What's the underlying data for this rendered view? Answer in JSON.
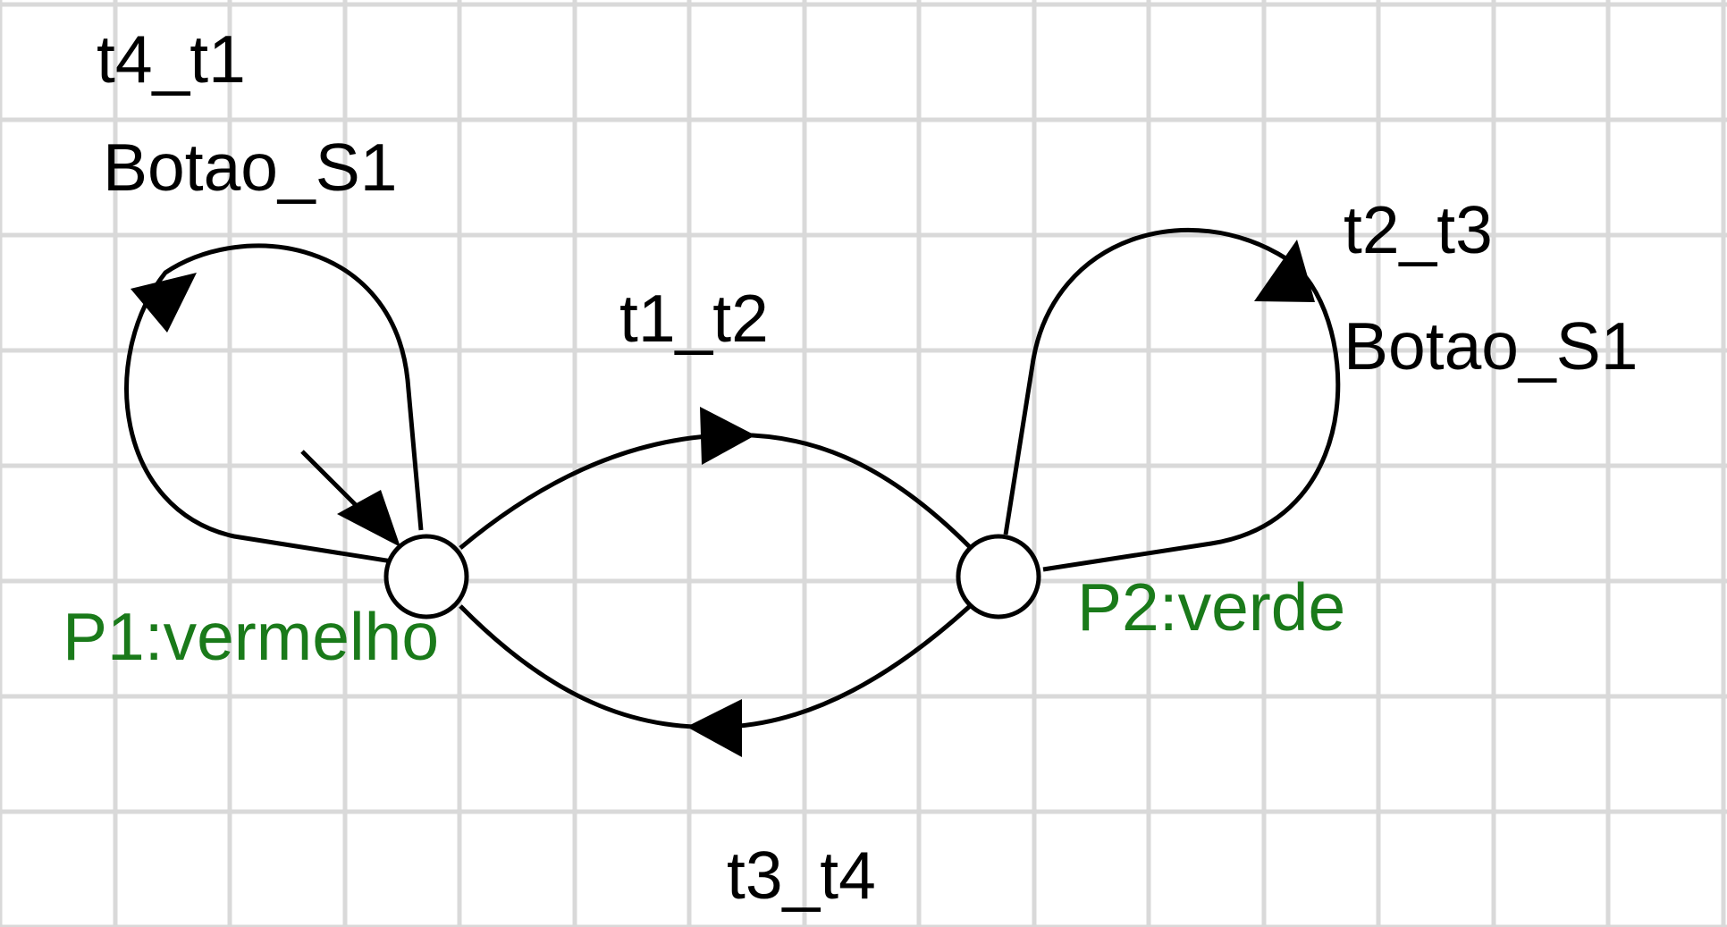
{
  "places": [
    {
      "id": "P1",
      "label": "P1:vermelho",
      "initial": true
    },
    {
      "id": "P2",
      "label": "P2:verde",
      "initial": false
    }
  ],
  "transitions": [
    {
      "name": "t1_t2",
      "event": "",
      "from": "P1",
      "to": "P2"
    },
    {
      "name": "t3_t4",
      "event": "",
      "from": "P2",
      "to": "P1"
    },
    {
      "name": "t4_t1",
      "event": "Botao_S1",
      "from": "P1",
      "to": "P1"
    },
    {
      "name": "t2_t3",
      "event": "Botao_S1",
      "from": "P2",
      "to": "P2"
    }
  ],
  "colors": {
    "grid": "#d9d9d9",
    "stroke": "#000000",
    "label": "#000000",
    "place_label": "#1a7a1a"
  }
}
